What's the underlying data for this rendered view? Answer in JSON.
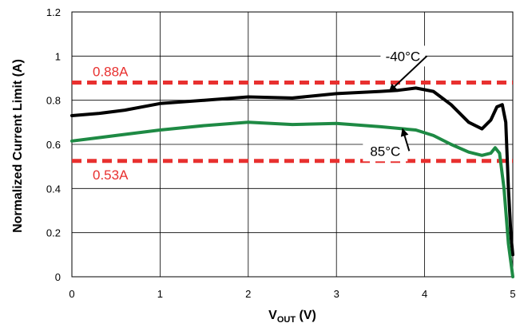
{
  "chart_data": {
    "type": "line",
    "xlabel_main": "V",
    "xlabel_sub": "OUT",
    "xlabel_unit": " (V)",
    "ylabel": "Normalized Current Limit (A)",
    "xlim": [
      0,
      5
    ],
    "ylim": [
      0,
      1.2
    ],
    "grid": true,
    "x_ticks": [
      "0",
      "1",
      "2",
      "3",
      "4",
      "5"
    ],
    "y_ticks": [
      "0",
      "0.2",
      "0.4",
      "0.6",
      "0.8",
      "1",
      "1.2"
    ],
    "series": [
      {
        "name": "-40°C",
        "color": "#000000",
        "x": [
          0,
          0.3,
          0.6,
          1.0,
          1.5,
          2.0,
          2.5,
          3.0,
          3.5,
          3.7,
          3.9,
          4.1,
          4.3,
          4.5,
          4.65,
          4.75,
          4.82,
          4.88,
          4.92,
          4.95,
          4.98,
          5.0
        ],
        "y": [
          0.73,
          0.74,
          0.755,
          0.785,
          0.8,
          0.815,
          0.81,
          0.83,
          0.84,
          0.845,
          0.855,
          0.84,
          0.78,
          0.7,
          0.67,
          0.71,
          0.77,
          0.78,
          0.7,
          0.4,
          0.18,
          0.1
        ]
      },
      {
        "name": "85°C",
        "color": "#1e8a44",
        "x": [
          0,
          0.5,
          1.0,
          1.5,
          2.0,
          2.5,
          3.0,
          3.5,
          3.9,
          4.1,
          4.3,
          4.5,
          4.65,
          4.75,
          4.8,
          4.85,
          4.9,
          4.95,
          5.0
        ],
        "y": [
          0.615,
          0.64,
          0.665,
          0.685,
          0.7,
          0.69,
          0.695,
          0.68,
          0.665,
          0.64,
          0.6,
          0.565,
          0.55,
          0.56,
          0.585,
          0.56,
          0.4,
          0.15,
          0.0
        ]
      }
    ],
    "reference_lines": [
      {
        "label": "0.88A",
        "y": 0.88,
        "color": "#e8302f"
      },
      {
        "label": "0.53A",
        "y": 0.525,
        "color": "#e8302f"
      }
    ],
    "annotations": [
      {
        "label": "-40°C",
        "x": 3.5,
        "y": 1.0,
        "arrow_to": [
          3.6,
          0.84
        ]
      },
      {
        "label": "85°C",
        "x": 3.3,
        "y": 0.57,
        "arrow_to": [
          3.75,
          0.67
        ]
      }
    ]
  }
}
